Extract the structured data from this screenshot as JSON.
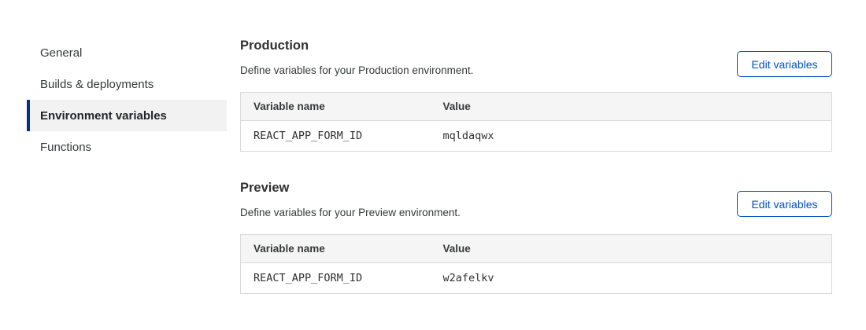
{
  "sidebar": {
    "items": [
      {
        "label": "General",
        "selected": false
      },
      {
        "label": "Builds & deployments",
        "selected": false
      },
      {
        "label": "Environment variables",
        "selected": true
      },
      {
        "label": "Functions",
        "selected": false
      }
    ]
  },
  "sections": [
    {
      "title": "Production",
      "description": "Define variables for your Production environment.",
      "button_label": "Edit variables",
      "table": {
        "columns": [
          "Variable name",
          "Value"
        ],
        "rows": [
          [
            "REACT_APP_FORM_ID",
            "mqldaqwx"
          ]
        ]
      }
    },
    {
      "title": "Preview",
      "description": "Define variables for your Preview environment.",
      "button_label": "Edit variables",
      "table": {
        "columns": [
          "Variable name",
          "Value"
        ],
        "rows": [
          [
            "REACT_APP_FORM_ID",
            "w2afelkv"
          ]
        ]
      }
    }
  ],
  "colors": {
    "accent_blue": "#0051c3",
    "selected_bar_blue": "#003681",
    "selected_item_bg": "#f2f2f2",
    "table_header_bg": "#f5f5f5",
    "table_border": "#d9d9d9",
    "heading_text": "#313131",
    "body_text": "#36393a"
  }
}
